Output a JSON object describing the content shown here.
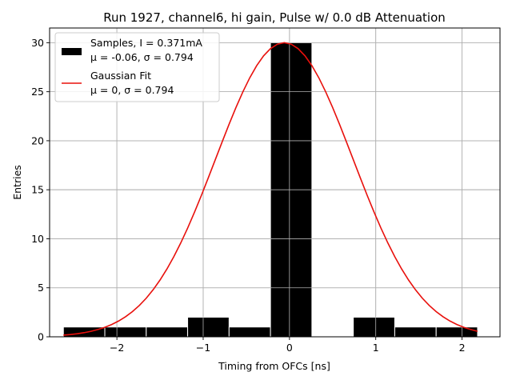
{
  "chart_data": {
    "type": "bar",
    "title": "Run 1927, channel6, hi gain, Pulse w/ 0.0 dB Attenuation",
    "xlabel": "Timing from OFCs [ns]",
    "ylabel": "Entries",
    "xlim": [
      -2.78,
      2.44
    ],
    "ylim": [
      0,
      31.5
    ],
    "grid": true,
    "xticks": [
      -2,
      -1,
      0,
      1,
      2
    ],
    "xtick_labels": [
      "−2",
      "−1",
      "0",
      "1",
      "2"
    ],
    "yticks": [
      0,
      5,
      10,
      15,
      20,
      25,
      30
    ],
    "ytick_labels": [
      "0",
      "5",
      "10",
      "15",
      "20",
      "25",
      "30"
    ],
    "histogram": {
      "name": "Samples, I = 0.371mA",
      "stats": "μ = -0.06, σ = 0.794",
      "color": "#000000",
      "bins": [
        {
          "left": -2.62,
          "right": -2.14,
          "count": 1
        },
        {
          "left": -2.14,
          "right": -1.66,
          "count": 1
        },
        {
          "left": -1.66,
          "right": -1.18,
          "count": 1
        },
        {
          "left": -1.18,
          "right": -0.7,
          "count": 2
        },
        {
          "left": -0.7,
          "right": -0.22,
          "count": 1
        },
        {
          "left": -0.22,
          "right": 0.26,
          "count": 30
        },
        {
          "left": 0.26,
          "right": 0.74,
          "count": 0
        },
        {
          "left": 0.74,
          "right": 1.22,
          "count": 2
        },
        {
          "left": 1.22,
          "right": 1.7,
          "count": 1
        },
        {
          "left": 1.7,
          "right": 2.18,
          "count": 1
        }
      ]
    },
    "fit": {
      "name": "Gaussian Fit",
      "stats": "μ = 0, σ = 0.794",
      "color": "#e8100c",
      "amplitude": 30,
      "mu": -0.06,
      "sigma": 0.794,
      "x_range": [
        -2.62,
        2.18
      ]
    },
    "legend_position": "upper left"
  }
}
